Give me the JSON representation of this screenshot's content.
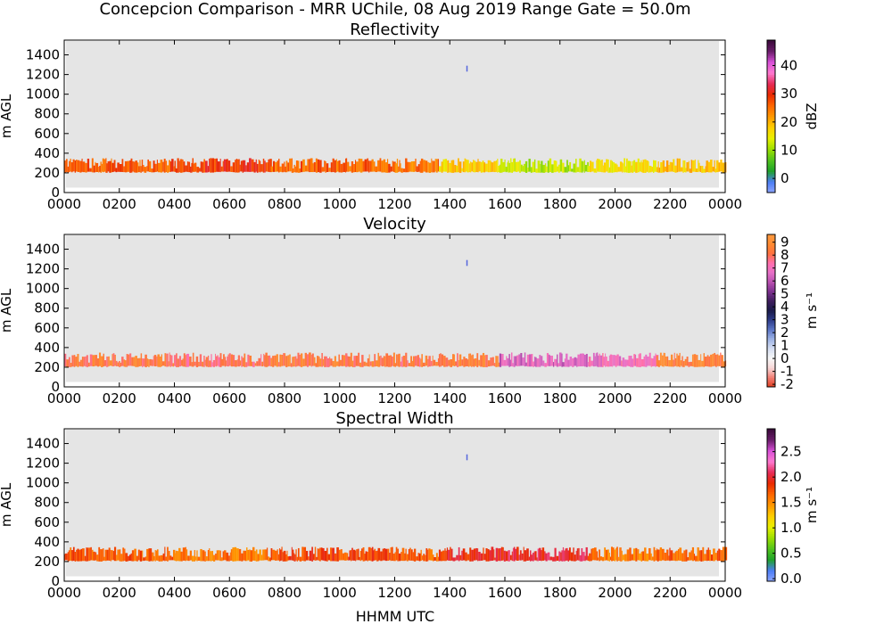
{
  "figure": {
    "suptitle": "Concepcion Comparison - MRR UChile, 08 Aug 2019 Range Gate = 50.0m",
    "xlabel": "HHMM UTC"
  },
  "chart_data": [
    {
      "type": "heatmap",
      "title": "Reflectivity",
      "ylabel": "m AGL",
      "ylim": [
        0,
        1550
      ],
      "yticks": [
        "0",
        "200",
        "400",
        "600",
        "800",
        "1000",
        "1200",
        "1400"
      ],
      "xlim": [
        0,
        24
      ],
      "xticks": [
        "0000",
        "0200",
        "0400",
        "0600",
        "0800",
        "1000",
        "1200",
        "1400",
        "1600",
        "1800",
        "2000",
        "2200",
        "0000"
      ],
      "background": "#e5e5e5",
      "colorbar": {
        "label": "dBZ",
        "range": [
          -5,
          49
        ],
        "ticks": [
          0,
          10,
          20,
          30,
          40
        ],
        "tick_labels": [
          "0",
          "10",
          "20",
          "30",
          "40"
        ],
        "colors": [
          "#8fa6ff",
          "#4c7df5",
          "#1fa32a",
          "#53c41d",
          "#9cdf00",
          "#e8f000",
          "#ffce00",
          "#ff9800",
          "#ff6600",
          "#ea2a00",
          "#e62a56",
          "#ff7ad0",
          "#d84fd8",
          "#6a1d6a",
          "#3a0a3a"
        ]
      },
      "segments": [
        {
          "x": [
            0.0,
            4.0
          ],
          "value": 27
        },
        {
          "x": [
            4.0,
            7.5
          ],
          "value": 29
        },
        {
          "x": [
            7.5,
            12.0
          ],
          "value": 26
        },
        {
          "x": [
            12.0,
            13.6
          ],
          "value": 25
        },
        {
          "x": [
            13.6,
            15.8
          ],
          "value": 18
        },
        {
          "x": [
            15.8,
            19.0
          ],
          "value": 12
        },
        {
          "x": [
            19.0,
            21.5
          ],
          "value": 16
        },
        {
          "x": [
            21.5,
            24.0
          ],
          "value": 19
        }
      ],
      "layer_height": [
        200,
        350
      ],
      "isolated_return": {
        "time": 14.6,
        "height": [
          1230,
          1290
        ]
      }
    },
    {
      "type": "heatmap",
      "title": "Velocity",
      "ylabel": "m s⁻¹",
      "ylabel_left": "m AGL",
      "ylim": [
        0,
        1550
      ],
      "yticks": [
        "0",
        "200",
        "400",
        "600",
        "800",
        "1000",
        "1200",
        "1400"
      ],
      "xlim": [
        0,
        24
      ],
      "xticks": [
        "0000",
        "0200",
        "0400",
        "0600",
        "0800",
        "1000",
        "1200",
        "1400",
        "1600",
        "1800",
        "2000",
        "2200",
        "0000"
      ],
      "background": "#e5e5e5",
      "colorbar": {
        "label": "m s⁻¹",
        "range": [
          -2.2,
          9.6
        ],
        "ticks": [
          -2,
          -1,
          0,
          1,
          2,
          3,
          4,
          5,
          6,
          7,
          8,
          9
        ],
        "tick_labels": [
          "-2",
          "-1",
          "0",
          "1",
          "2",
          "3",
          "4",
          "5",
          "6",
          "7",
          "8",
          "9"
        ],
        "colors": [
          "#e03c1e",
          "#f27d73",
          "#f7d6d6",
          "#f7f7f7",
          "#d8e0f2",
          "#9fb5e6",
          "#5e78c8",
          "#2f3e8c",
          "#1a1a4a",
          "#3c1d5c",
          "#7a2f8c",
          "#b84fb0",
          "#e670c8",
          "#ff6fb0",
          "#ff7040",
          "#ff8a30",
          "#ff9a40"
        ]
      },
      "segments": [
        {
          "x": [
            0.0,
            4.0
          ],
          "value": 8.3
        },
        {
          "x": [
            4.0,
            7.5
          ],
          "value": 8.0
        },
        {
          "x": [
            7.5,
            12.0
          ],
          "value": 8.4
        },
        {
          "x": [
            12.0,
            13.6
          ],
          "value": 8.2
        },
        {
          "x": [
            13.6,
            15.8
          ],
          "value": 8.5
        },
        {
          "x": [
            15.8,
            19.0
          ],
          "value": 6.5
        },
        {
          "x": [
            19.0,
            21.5
          ],
          "value": 7.0
        },
        {
          "x": [
            21.5,
            24.0
          ],
          "value": 8.6
        }
      ],
      "layer_height": [
        200,
        350
      ],
      "isolated_return": {
        "time": 14.6,
        "height": [
          1230,
          1290
        ]
      }
    },
    {
      "type": "heatmap",
      "title": "Spectral Width",
      "ylabel_left": "m AGL",
      "ylim": [
        0,
        1550
      ],
      "yticks": [
        "0",
        "200",
        "400",
        "600",
        "800",
        "1000",
        "1200",
        "1400"
      ],
      "xlim": [
        0,
        24
      ],
      "xticks": [
        "0000",
        "0200",
        "0400",
        "0600",
        "0800",
        "1000",
        "1200",
        "1400",
        "1600",
        "1800",
        "2000",
        "2200",
        "0000"
      ],
      "background": "#e5e5e5",
      "colorbar": {
        "label": "m s⁻¹",
        "range": [
          -0.05,
          2.95
        ],
        "ticks": [
          0.0,
          0.5,
          1.0,
          1.5,
          2.0,
          2.5
        ],
        "tick_labels": [
          "0.0",
          "0.5",
          "1.0",
          "1.5",
          "2.0",
          "2.5"
        ],
        "colors": [
          "#8fa6ff",
          "#4c7df5",
          "#1fa32a",
          "#53c41d",
          "#9cdf00",
          "#e8f000",
          "#ffce00",
          "#ff9800",
          "#ff6600",
          "#ea2a00",
          "#e62a56",
          "#ff7ad0",
          "#d84fd8",
          "#6a1d6a",
          "#3a0a3a"
        ]
      },
      "segments": [
        {
          "x": [
            0.0,
            4.0
          ],
          "value": 1.7
        },
        {
          "x": [
            4.0,
            7.5
          ],
          "value": 1.6
        },
        {
          "x": [
            7.5,
            12.0
          ],
          "value": 1.8
        },
        {
          "x": [
            12.0,
            13.6
          ],
          "value": 1.7
        },
        {
          "x": [
            13.6,
            15.8
          ],
          "value": 1.9
        },
        {
          "x": [
            15.8,
            19.0
          ],
          "value": 2.0
        },
        {
          "x": [
            19.0,
            21.5
          ],
          "value": 1.6
        },
        {
          "x": [
            21.5,
            24.0
          ],
          "value": 1.7
        }
      ],
      "layer_height": [
        200,
        350
      ],
      "isolated_return": {
        "time": 14.6,
        "height": [
          1230,
          1290
        ]
      }
    }
  ]
}
